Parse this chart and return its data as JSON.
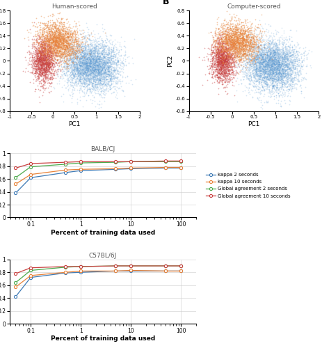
{
  "panel_A_title": "Human-scored",
  "panel_B_title": "Computer-scored",
  "panel_C_title": "BALB/CJ",
  "panel_D_title": "C57BL/6J",
  "xlabel_scatter": "PC1",
  "ylabel_scatter": "PC2",
  "xlabel_line": "Percent of training data used",
  "scatter_xlim": [
    -1,
    2
  ],
  "scatter_ylim": [
    -0.8,
    0.8
  ],
  "line_x": [
    0.05,
    0.1,
    0.5,
    1,
    5,
    10,
    50,
    100
  ],
  "line_ylim": [
    0,
    1
  ],
  "line_yticks": [
    0,
    0.2,
    0.4,
    0.6,
    0.8,
    1.0
  ],
  "C_kappa_2s": [
    0.38,
    0.62,
    0.7,
    0.73,
    0.75,
    0.76,
    0.77,
    0.77
  ],
  "C_kappa_10s": [
    0.52,
    0.67,
    0.74,
    0.75,
    0.76,
    0.77,
    0.78,
    0.78
  ],
  "C_global_2s": [
    0.62,
    0.79,
    0.83,
    0.85,
    0.86,
    0.87,
    0.87,
    0.87
  ],
  "C_global_10s": [
    0.77,
    0.84,
    0.86,
    0.87,
    0.87,
    0.87,
    0.88,
    0.88
  ],
  "D_kappa_2s": [
    0.42,
    0.72,
    0.79,
    0.8,
    0.82,
    0.82,
    0.82,
    0.82
  ],
  "D_kappa_10s": [
    0.57,
    0.75,
    0.8,
    0.82,
    0.82,
    0.83,
    0.82,
    0.82
  ],
  "D_global_2s": [
    0.64,
    0.83,
    0.88,
    0.89,
    0.9,
    0.9,
    0.9,
    0.9
  ],
  "D_global_10s": [
    0.78,
    0.87,
    0.89,
    0.89,
    0.9,
    0.9,
    0.9,
    0.9
  ],
  "color_kappa_2s": "#3E7AB5",
  "color_kappa_10s": "#E8833A",
  "color_global_2s": "#4DAA4D",
  "color_global_10s": "#C94040",
  "legend_labels": [
    "kappa 2 seconds",
    "kappa 10 seconds",
    "Global agreement 2 seconds",
    "Global agreement 10 seconds"
  ],
  "n_scatter": 8000,
  "seed": 42,
  "blue_color": "#5B9BD5",
  "orange_color": "#E8833A",
  "red_color": "#C94040",
  "scatter_alpha": 0.25,
  "scatter_size": 1.5
}
